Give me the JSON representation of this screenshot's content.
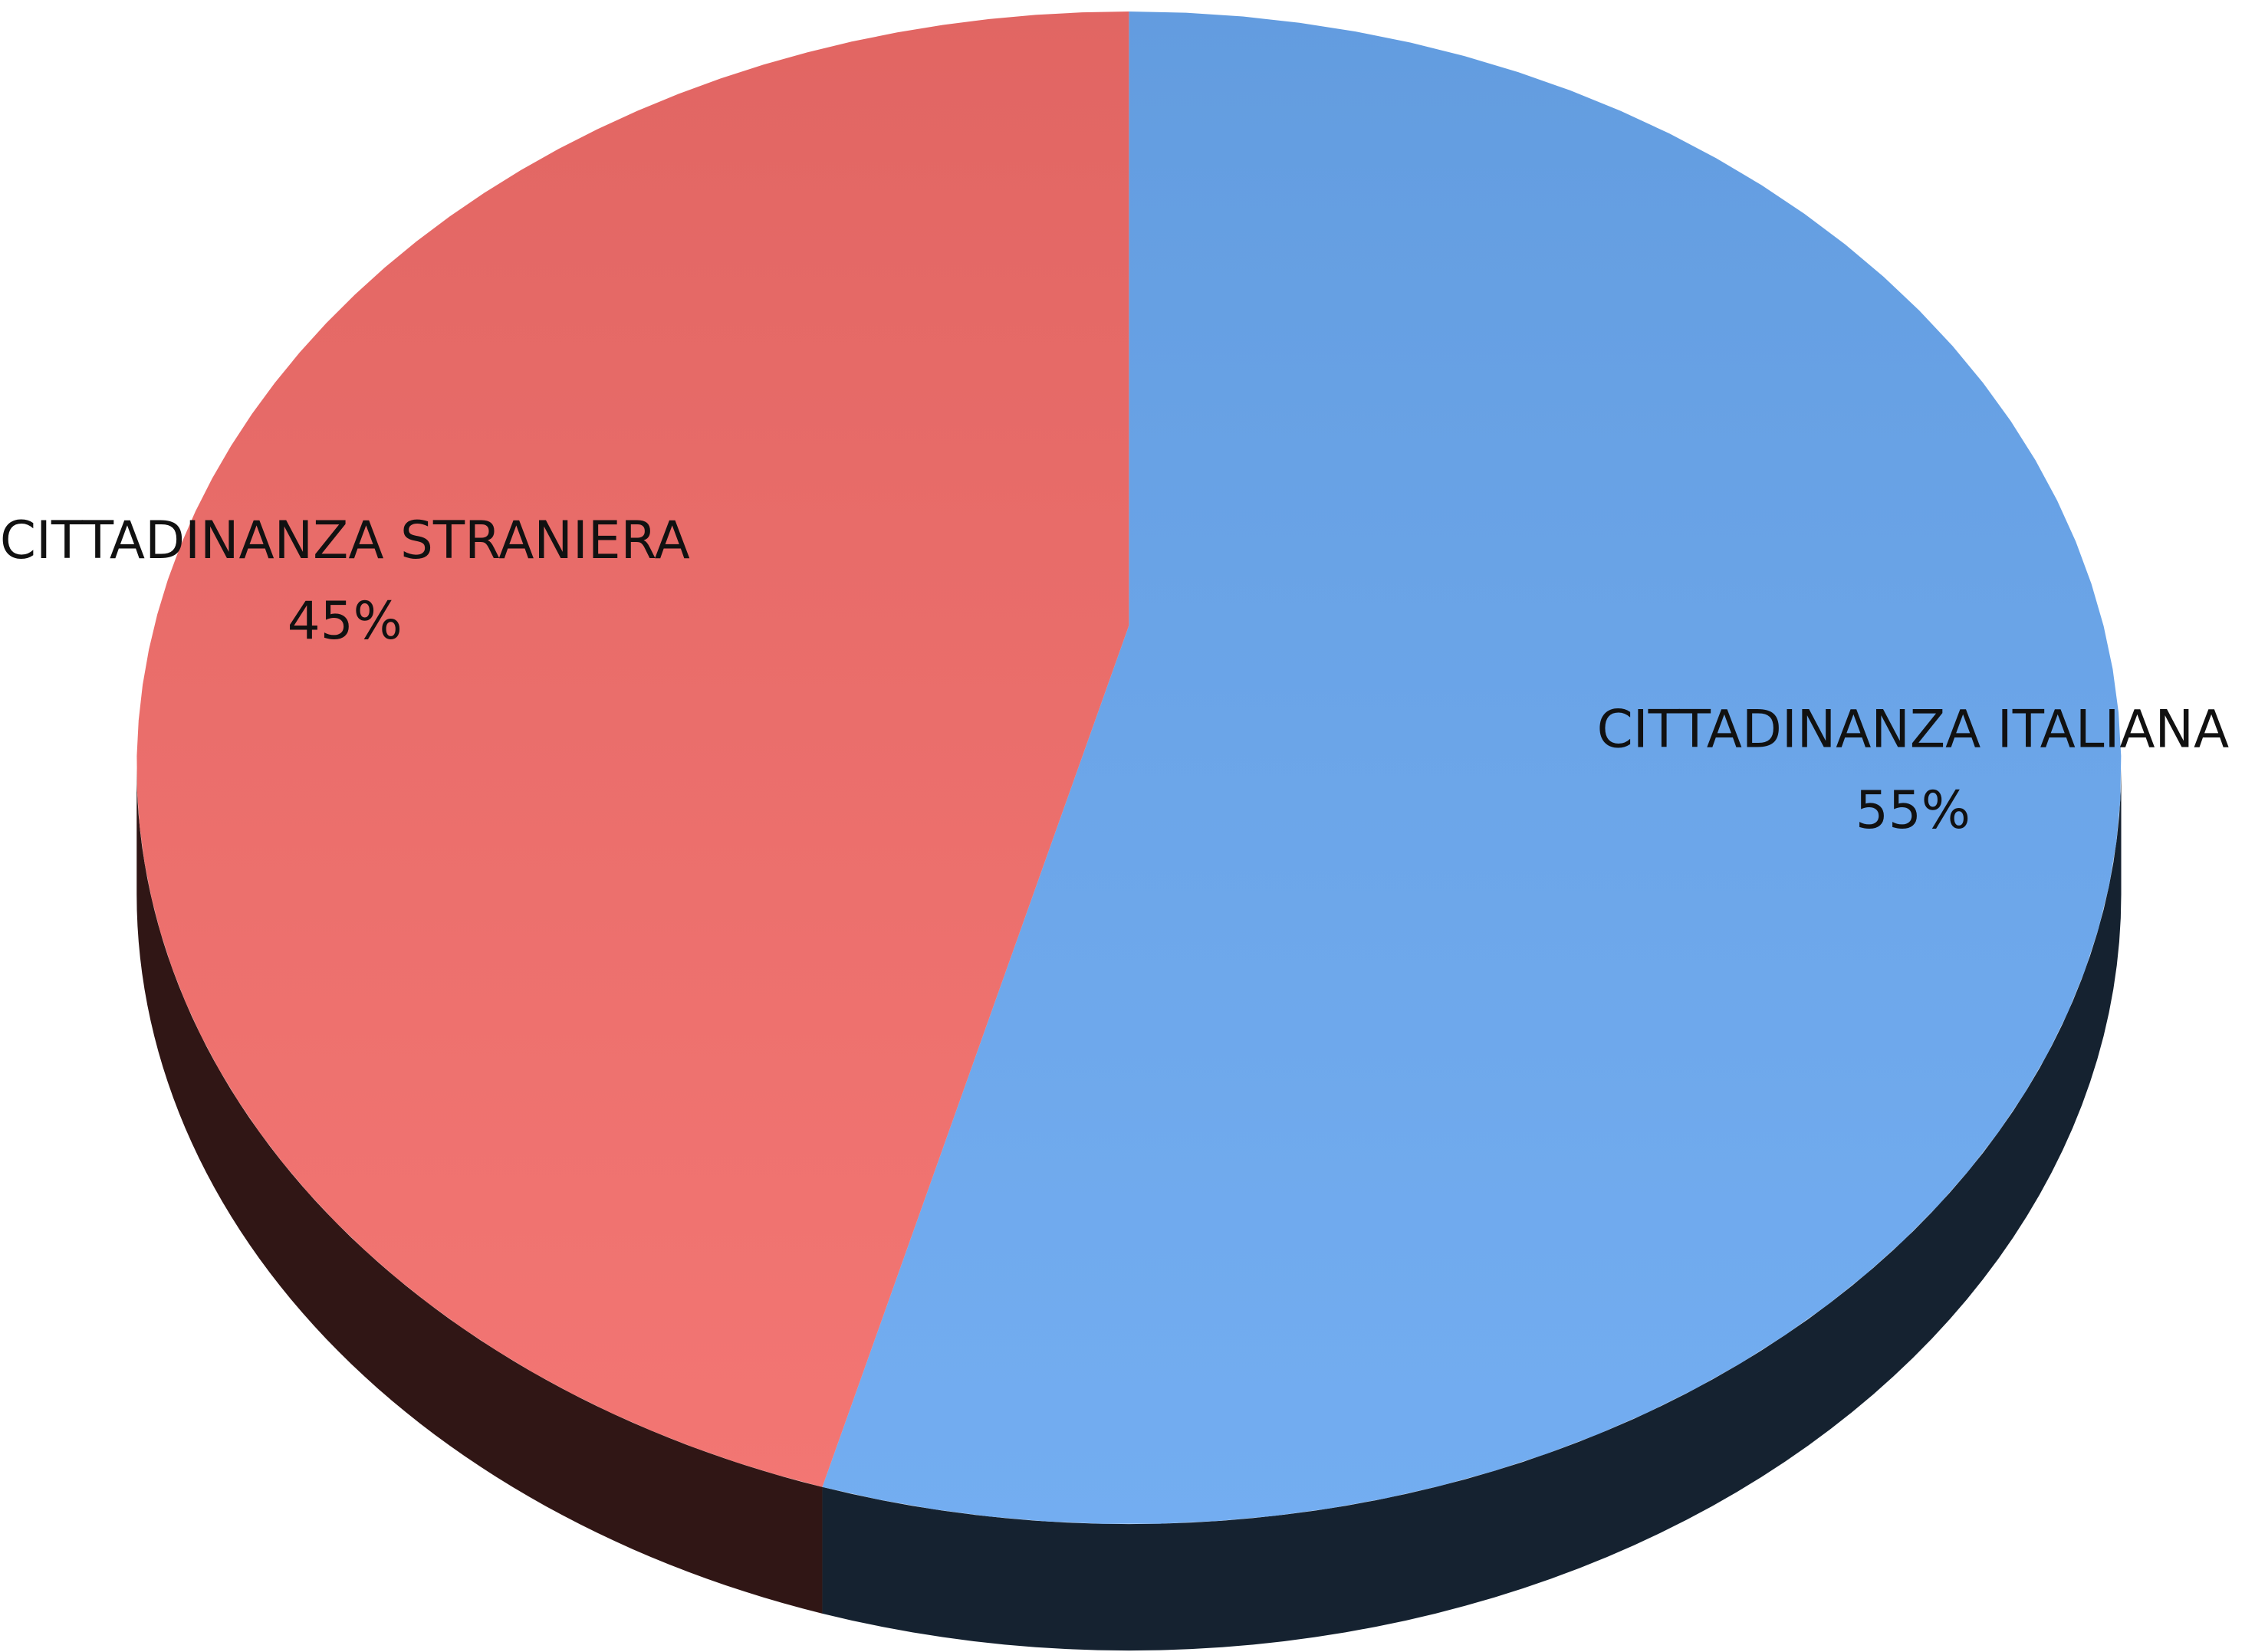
{
  "chart_data": {
    "type": "pie",
    "categories": [
      "CITTADINANZA ITALIANA",
      "CITTADINANZA STRANIERA"
    ],
    "values": [
      55,
      45
    ],
    "value_labels": [
      "55%",
      "45%"
    ],
    "colors": [
      "#6aa8f0",
      "#f26d6a"
    ]
  }
}
